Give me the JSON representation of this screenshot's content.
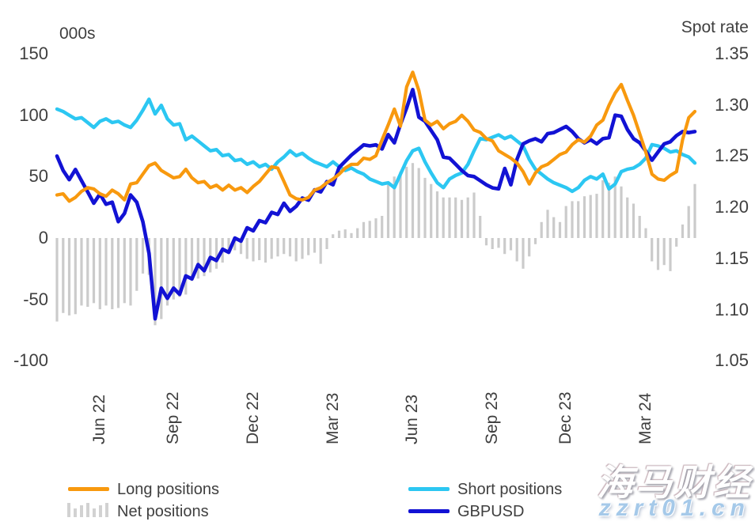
{
  "watermark": {
    "line1": "海马财经",
    "line2": "zzrt01.cn"
  },
  "colors": {
    "long": "#F8990E",
    "short": "#2CC7F2",
    "gbpusd": "#1212D4",
    "net": "#CBCBCB",
    "text": "#3F3F3F"
  },
  "chart_data": {
    "type": "line",
    "subtype": "combo line + bar, dual axis, weekly data May 2022 - Apr 2024",
    "left_axis": {
      "title": "000s",
      "ticks": [
        150,
        100,
        50,
        0,
        -50,
        -100
      ],
      "range": [
        -100,
        150
      ]
    },
    "right_axis": {
      "title": "Spot rate",
      "ticks": [
        1.35,
        1.3,
        1.25,
        1.2,
        1.15,
        1.1,
        1.05
      ],
      "range": [
        1.05,
        1.35
      ]
    },
    "x_ticks": [
      {
        "i": 4,
        "label": "Jun 22"
      },
      {
        "i": 16,
        "label": "Sep 22"
      },
      {
        "i": 29,
        "label": "Dec 22"
      },
      {
        "i": 42,
        "label": "Mar 23"
      },
      {
        "i": 55,
        "label": "Jun 23"
      },
      {
        "i": 68,
        "label": "Sep 23"
      },
      {
        "i": 80,
        "label": "Dec 23"
      },
      {
        "i": 93,
        "label": "Mar 24"
      }
    ],
    "grid": "off",
    "legend_position": "bottom",
    "series": [
      {
        "name": "Long positions",
        "type": "line",
        "axis": "left",
        "values": [
          35,
          36,
          30,
          33,
          38,
          41,
          40,
          36,
          34,
          39,
          36,
          31,
          44,
          45,
          52,
          59,
          61,
          55,
          52,
          49,
          50,
          56,
          49,
          45,
          46,
          41,
          43,
          39,
          43,
          39,
          41,
          37,
          42,
          46,
          52,
          58,
          57,
          46,
          35,
          32,
          31,
          33,
          39,
          41,
          45,
          48,
          52,
          57,
          60,
          60,
          65,
          64,
          67,
          80,
          92,
          105,
          91,
          123,
          135,
          120,
          96,
          92,
          95,
          89,
          93,
          95,
          100,
          95,
          88,
          86,
          81,
          79,
          71,
          68,
          65,
          61,
          54,
          44,
          53,
          58,
          60,
          64,
          68,
          70,
          76,
          80,
          78,
          83,
          92,
          96,
          108,
          118,
          125,
          112,
          100,
          85,
          70,
          52,
          48,
          47,
          51,
          54,
          80,
          98,
          103
        ]
      },
      {
        "name": "Short positions",
        "type": "line",
        "axis": "left",
        "values": [
          105,
          103,
          100,
          97,
          98,
          94,
          90,
          95,
          97,
          94,
          95,
          92,
          90,
          96,
          104,
          113,
          101,
          108,
          97,
          92,
          93,
          80,
          83,
          79,
          75,
          71,
          72,
          67,
          68,
          63,
          64,
          60,
          62,
          58,
          60,
          56,
          62,
          66,
          71,
          67,
          69,
          65,
          62,
          60,
          58,
          62,
          58,
          55,
          57,
          54,
          52,
          48,
          46,
          44,
          45,
          41,
          52,
          63,
          71,
          73,
          62,
          53,
          45,
          41,
          48,
          51,
          53,
          60,
          71,
          81,
          80,
          82,
          84,
          81,
          83,
          79,
          75,
          64,
          56,
          52,
          48,
          45,
          43,
          41,
          38,
          41,
          47,
          50,
          48,
          52,
          40,
          44,
          54,
          56,
          57,
          60,
          65,
          76,
          75,
          73,
          70,
          71,
          68,
          66,
          61
        ]
      },
      {
        "name": "GBPUSD",
        "type": "line",
        "axis": "right",
        "values": [
          1.25,
          1.236,
          1.227,
          1.237,
          1.226,
          1.215,
          1.204,
          1.213,
          1.203,
          1.205,
          1.186,
          1.194,
          1.212,
          1.205,
          1.186,
          1.155,
          1.091,
          1.121,
          1.111,
          1.121,
          1.115,
          1.133,
          1.13,
          1.144,
          1.138,
          1.151,
          1.148,
          1.159,
          1.156,
          1.17,
          1.167,
          1.18,
          1.177,
          1.187,
          1.185,
          1.195,
          1.193,
          1.204,
          1.196,
          1.201,
          1.209,
          1.207,
          1.217,
          1.215,
          1.225,
          1.222,
          1.239,
          1.245,
          1.251,
          1.256,
          1.261,
          1.26,
          1.261,
          1.257,
          1.271,
          1.263,
          1.281,
          1.297,
          1.315,
          1.288,
          1.284,
          1.275,
          1.266,
          1.249,
          1.248,
          1.242,
          1.236,
          1.231,
          1.23,
          1.226,
          1.222,
          1.219,
          1.218,
          1.238,
          1.222,
          1.247,
          1.262,
          1.265,
          1.267,
          1.264,
          1.272,
          1.273,
          1.276,
          1.279,
          1.274,
          1.267,
          1.263,
          1.266,
          1.262,
          1.267,
          1.268,
          1.29,
          1.289,
          1.276,
          1.267,
          1.263,
          1.255,
          1.246,
          1.254,
          1.262,
          1.264,
          1.27,
          1.274,
          1.273,
          1.274
        ]
      },
      {
        "name": "Net positions",
        "type": "bar",
        "axis": "left",
        "values": [
          -68,
          -61,
          -63,
          -62,
          -55,
          -56,
          -53,
          -58,
          -55,
          -58,
          -57,
          -53,
          -55,
          -43,
          -29,
          -30,
          -71,
          -66,
          -55,
          -50,
          -48,
          -46,
          -35,
          -33,
          -31,
          -28,
          -25,
          -20,
          -12,
          -10,
          -13,
          -17,
          -19,
          -18,
          -20,
          -17,
          -15,
          -13,
          -15,
          -19,
          -17,
          -14,
          -12,
          -21,
          -9,
          3,
          6,
          7,
          4,
          8,
          13,
          14,
          16,
          18,
          45,
          50,
          54,
          58,
          61,
          57,
          49,
          44,
          38,
          33,
          33,
          33,
          31,
          33,
          37,
          18,
          -6,
          -9,
          -8,
          -13,
          -10,
          -19,
          -25,
          -15,
          -5,
          13,
          23,
          17,
          13,
          26,
          30,
          30,
          34,
          35,
          36,
          47,
          45,
          50,
          42,
          33,
          28,
          18,
          8,
          -19,
          -26,
          -22,
          -27,
          -7,
          11,
          26,
          44
        ]
      }
    ]
  }
}
